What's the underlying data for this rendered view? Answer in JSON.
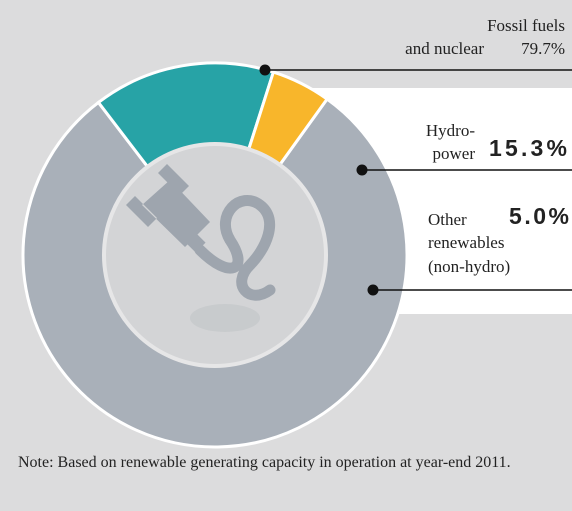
{
  "chart_data": {
    "type": "donut",
    "categories": [
      [
        "Fossil fuels",
        "and nuclear"
      ],
      [
        "Hydro-",
        "power"
      ],
      [
        "Other",
        "renewables",
        "(non-hydro)"
      ]
    ],
    "values": [
      79.7,
      15.3,
      5.0
    ],
    "value_labels": [
      "79.7%",
      "15.3%",
      "5.0%"
    ],
    "colors": [
      "#a9b0b9",
      "#27a3a6",
      "#f8b62b"
    ],
    "note": "Note: Based on renewable generating capacity in operation at year-end 2011."
  }
}
